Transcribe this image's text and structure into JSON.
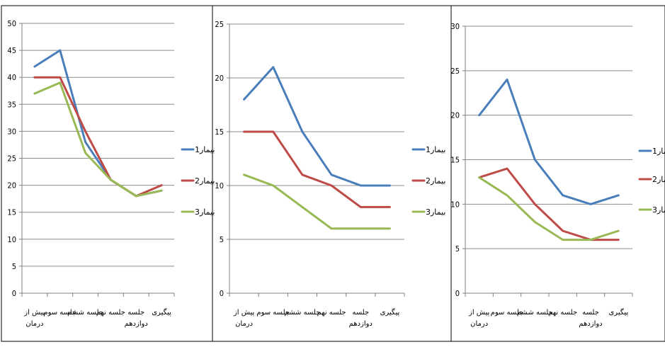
{
  "chart_data": [
    {
      "type": "line",
      "categories": [
        [
          "پیش از",
          "درمان"
        ],
        [
          "جلسه سوم"
        ],
        [
          "جلسه ششم"
        ],
        [
          "جلسه نهم"
        ],
        [
          "جلسه",
          "دوازدهم"
        ],
        [
          "پیگیری"
        ]
      ],
      "ylim": [
        0,
        50
      ],
      "yticks": [
        0,
        5,
        10,
        15,
        20,
        25,
        30,
        35,
        40,
        45,
        50
      ],
      "grid": true,
      "legend": "right",
      "series": [
        {
          "name": "بیمار1",
          "color": "#4a7ebb",
          "values": [
            42,
            45,
            28,
            21,
            18,
            19
          ]
        },
        {
          "name": "بیمار2",
          "color": "#be4b48",
          "values": [
            40,
            40,
            30,
            21,
            18,
            20
          ]
        },
        {
          "name": "بیمار3",
          "color": "#98b954",
          "values": [
            37,
            39,
            26,
            21,
            18,
            19
          ]
        }
      ]
    },
    {
      "type": "line",
      "categories": [
        [
          "پیش از",
          "درمان"
        ],
        [
          "جلسه سوم"
        ],
        [
          "جلسه ششم"
        ],
        [
          "جلسه نهم"
        ],
        [
          "جلسه",
          "دوازدهم"
        ],
        [
          "پیگیری"
        ]
      ],
      "ylim": [
        0,
        25
      ],
      "yticks": [
        0,
        5,
        10,
        15,
        20,
        25
      ],
      "grid": true,
      "legend": "right",
      "series": [
        {
          "name": "بیمار1",
          "color": "#4a7ebb",
          "values": [
            18,
            21,
            15,
            11,
            10,
            10
          ]
        },
        {
          "name": "بیمار2",
          "color": "#be4b48",
          "values": [
            15,
            15,
            11,
            10,
            8,
            8
          ]
        },
        {
          "name": "بیمار3",
          "color": "#98b954",
          "values": [
            11,
            10,
            8,
            6,
            6,
            6
          ]
        }
      ]
    },
    {
      "type": "line",
      "categories": [
        [
          "پیش از",
          "درمان"
        ],
        [
          "جلسه سوم"
        ],
        [
          "جلسه ششم"
        ],
        [
          "جلسه نهم"
        ],
        [
          "جلسه",
          "دوازدهم"
        ],
        [
          "پیگیری"
        ]
      ],
      "ylim": [
        0,
        30
      ],
      "yticks": [
        0,
        5,
        10,
        15,
        20,
        25,
        30
      ],
      "grid": true,
      "legend": "right",
      "series": [
        {
          "name": "بیمار1",
          "color": "#4a7ebb",
          "values": [
            20,
            24,
            15,
            11,
            10,
            11
          ]
        },
        {
          "name": "بیمار2",
          "color": "#be4b48",
          "values": [
            13,
            14,
            10,
            7,
            6,
            6
          ]
        },
        {
          "name": "بیمار3",
          "color": "#98b954",
          "values": [
            13,
            11,
            8,
            6,
            6,
            7
          ]
        }
      ]
    }
  ]
}
